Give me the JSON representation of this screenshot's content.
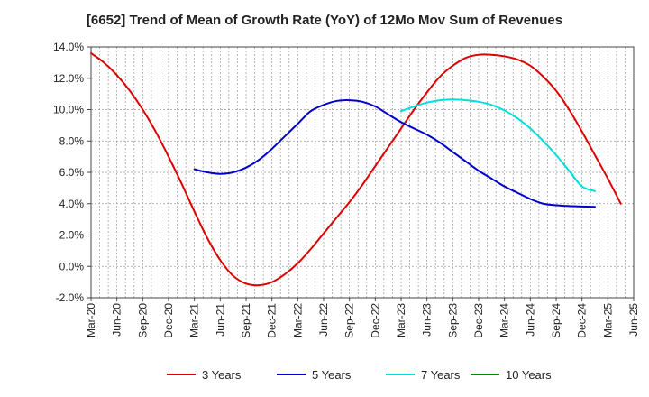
{
  "chart_data": {
    "type": "line",
    "title": "[6652]  Trend of Mean of Growth Rate (YoY) of 12Mo Mov Sum of Revenues",
    "xlabel": "",
    "ylabel": "",
    "ylim": [
      -2.0,
      14.0
    ],
    "y_ticks": [
      "-2.0%",
      "0.0%",
      "2.0%",
      "4.0%",
      "6.0%",
      "8.0%",
      "10.0%",
      "12.0%",
      "14.0%"
    ],
    "x_ticks": [
      "Mar-20",
      "Jun-20",
      "Sep-20",
      "Dec-20",
      "Mar-21",
      "Jun-21",
      "Sep-21",
      "Dec-21",
      "Mar-22",
      "Jun-22",
      "Sep-22",
      "Dec-22",
      "Mar-23",
      "Jun-23",
      "Sep-23",
      "Dec-23",
      "Mar-24",
      "Jun-24",
      "Sep-24",
      "Dec-24",
      "Mar-25",
      "Jun-25"
    ],
    "grid": true,
    "legend_position": "bottom",
    "series": [
      {
        "name": "3 Years",
        "color": "#dd0000",
        "points": [
          [
            0,
            13.6
          ],
          [
            1,
            13.0
          ],
          [
            2,
            12.2
          ],
          [
            3,
            11.2
          ],
          [
            4,
            10.0
          ],
          [
            5,
            8.6
          ],
          [
            6,
            7.0
          ],
          [
            7,
            5.3
          ],
          [
            8,
            3.5
          ],
          [
            9,
            1.8
          ],
          [
            10,
            0.4
          ],
          [
            11,
            -0.6
          ],
          [
            12,
            -1.1
          ],
          [
            13,
            -1.2
          ],
          [
            14,
            -1.0
          ],
          [
            15,
            -0.5
          ],
          [
            16,
            0.2
          ],
          [
            17,
            1.1
          ],
          [
            18,
            2.1
          ],
          [
            19,
            3.1
          ],
          [
            20,
            4.1
          ],
          [
            21,
            5.2
          ],
          [
            22,
            6.4
          ],
          [
            23,
            7.6
          ],
          [
            24,
            8.8
          ],
          [
            25,
            10.0
          ],
          [
            26,
            11.1
          ],
          [
            27,
            12.1
          ],
          [
            28,
            12.8
          ],
          [
            29,
            13.3
          ],
          [
            30,
            13.5
          ],
          [
            31,
            13.5
          ],
          [
            32,
            13.4
          ],
          [
            33,
            13.2
          ],
          [
            34,
            12.8
          ],
          [
            35,
            12.1
          ],
          [
            36,
            11.2
          ],
          [
            37,
            10.0
          ],
          [
            38,
            8.6
          ],
          [
            39,
            7.1
          ],
          [
            40,
            5.6
          ],
          [
            41,
            4.0
          ]
        ]
      },
      {
        "name": "5 Years",
        "color": "#0000cc",
        "points": [
          [
            8,
            6.2
          ],
          [
            9,
            6.0
          ],
          [
            10,
            5.9
          ],
          [
            11,
            6.0
          ],
          [
            12,
            6.3
          ],
          [
            13,
            6.8
          ],
          [
            14,
            7.5
          ],
          [
            15,
            8.3
          ],
          [
            16,
            9.1
          ],
          [
            17,
            9.9
          ],
          [
            18,
            10.3
          ],
          [
            19,
            10.55
          ],
          [
            20,
            10.6
          ],
          [
            21,
            10.5
          ],
          [
            22,
            10.2
          ],
          [
            23,
            9.7
          ],
          [
            24,
            9.2
          ],
          [
            25,
            8.8
          ],
          [
            26,
            8.4
          ],
          [
            27,
            7.9
          ],
          [
            28,
            7.3
          ],
          [
            29,
            6.7
          ],
          [
            30,
            6.1
          ],
          [
            31,
            5.6
          ],
          [
            32,
            5.1
          ],
          [
            33,
            4.7
          ],
          [
            34,
            4.3
          ],
          [
            35,
            4.0
          ],
          [
            36,
            3.9
          ],
          [
            37,
            3.85
          ],
          [
            38,
            3.82
          ],
          [
            39,
            3.8
          ]
        ]
      },
      {
        "name": "7 Years",
        "color": "#00dddd",
        "points": [
          [
            24,
            9.9
          ],
          [
            25,
            10.2
          ],
          [
            26,
            10.45
          ],
          [
            27,
            10.6
          ],
          [
            28,
            10.65
          ],
          [
            29,
            10.6
          ],
          [
            30,
            10.5
          ],
          [
            31,
            10.3
          ],
          [
            32,
            9.95
          ],
          [
            33,
            9.45
          ],
          [
            34,
            8.8
          ],
          [
            35,
            8.0
          ],
          [
            36,
            7.1
          ],
          [
            37,
            6.1
          ],
          [
            38,
            5.1
          ],
          [
            39,
            4.8
          ]
        ]
      },
      {
        "name": "10 Years",
        "color": "#008800",
        "points": []
      }
    ]
  }
}
